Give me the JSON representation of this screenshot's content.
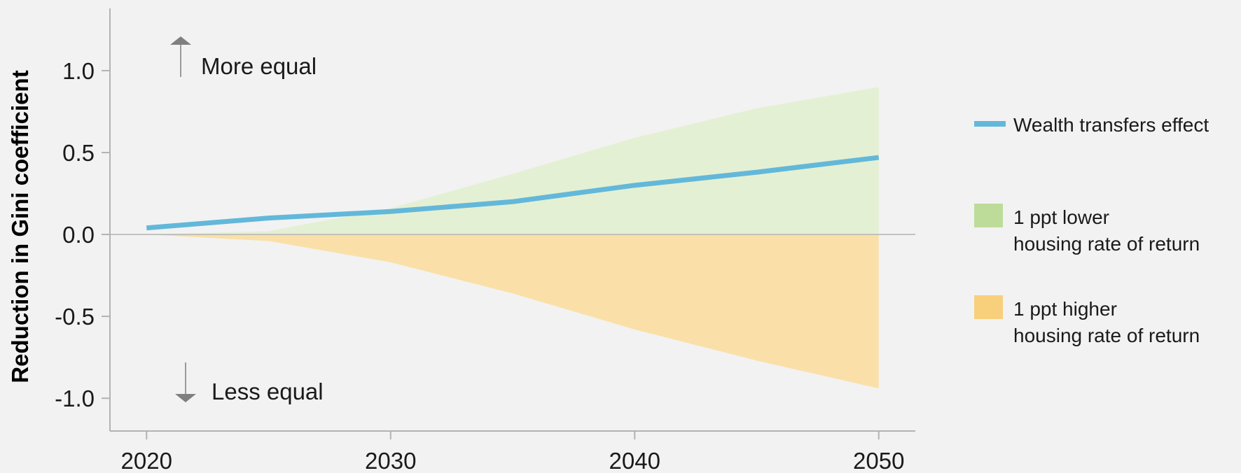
{
  "chart_data": {
    "type": "area",
    "ylabel": "Reduction in Gini coefficient",
    "xlabel": "",
    "xlim": [
      2018.5,
      2051.5
    ],
    "ylim": [
      -1.2,
      1.38
    ],
    "x_ticks": [
      2020,
      2030,
      2040,
      2050
    ],
    "x_tick_labels": [
      "2020",
      "2030",
      "2040",
      "2050"
    ],
    "y_ticks": [
      1.0,
      0.5,
      0.0,
      -0.5,
      -1.0
    ],
    "y_tick_labels": [
      "1.0",
      "0.5",
      "0.0",
      "-0.5",
      "-1.0"
    ],
    "series": [
      {
        "name": "Wealth transfers effect",
        "kind": "line",
        "color": "#63b8da",
        "x": [
          2020,
          2025,
          2030,
          2035,
          2040,
          2045,
          2050
        ],
        "values": [
          0.04,
          0.1,
          0.14,
          0.2,
          0.3,
          0.38,
          0.47
        ]
      },
      {
        "name": "1 ppt lower housing rate of return",
        "kind": "area",
        "color": "#e4f0d4",
        "legend_color": "#bddc9a",
        "x": [
          2020,
          2025,
          2030,
          2035,
          2040,
          2045,
          2050
        ],
        "values": [
          0.0,
          0.02,
          0.16,
          0.37,
          0.59,
          0.77,
          0.9
        ]
      },
      {
        "name": "1 ppt higher housing rate of return",
        "kind": "area",
        "color": "#fae0a8",
        "legend_color": "#f8d07c",
        "x": [
          2020,
          2025,
          2030,
          2035,
          2040,
          2045,
          2050
        ],
        "values": [
          0.0,
          -0.04,
          -0.17,
          -0.36,
          -0.58,
          -0.77,
          -0.94
        ]
      }
    ],
    "annotations": {
      "up": "More equal",
      "down": "Less equal"
    },
    "legend": {
      "placement": "right",
      "items": [
        {
          "lines": [
            "Wealth transfers effect"
          ],
          "swatch": "line"
        },
        {
          "lines": [
            "1 ppt lower",
            "housing rate of return"
          ],
          "swatch": "box"
        },
        {
          "lines": [
            "1 ppt higher",
            "housing rate of return"
          ],
          "swatch": "box"
        }
      ]
    },
    "grid": false
  }
}
